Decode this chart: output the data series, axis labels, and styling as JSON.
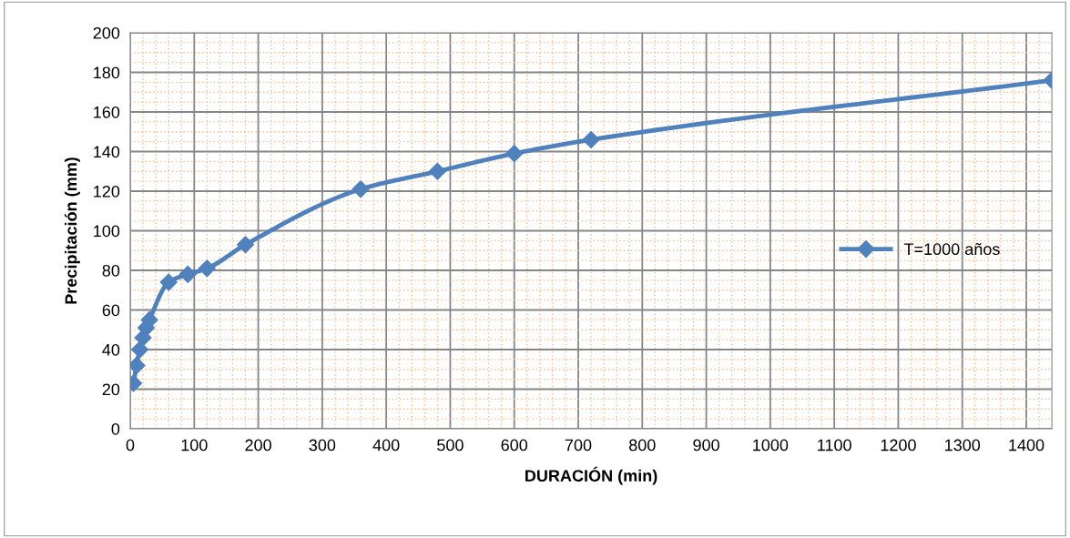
{
  "chart_data": {
    "type": "line",
    "xlabel": "DURACIÓN (min)",
    "ylabel": "Precipitación (mm)",
    "xlim": [
      0,
      1440
    ],
    "xticks": [
      0,
      {
        "value": 20,
        "label": null
      },
      {
        "value": 40,
        "label": null
      },
      {
        "value": 60,
        "label": null
      },
      {
        "value": 80,
        "label": null
      },
      100,
      {
        "value": 120,
        "label": null
      },
      {
        "value": 140,
        "label": null
      },
      {
        "value": 160,
        "label": null
      },
      {
        "value": 180,
        "label": null
      },
      200,
      {
        "value": 220,
        "label": null
      },
      {
        "value": 240,
        "label": null
      },
      {
        "value": 260,
        "label": null
      },
      {
        "value": 280,
        "label": null
      },
      300,
      {
        "value": 320,
        "label": null
      },
      {
        "value": 340,
        "label": null
      },
      {
        "value": 360,
        "label": null
      },
      {
        "value": 380,
        "label": null
      },
      400,
      {
        "value": 420,
        "label": null
      },
      {
        "value": 440,
        "label": null
      },
      {
        "value": 460,
        "label": null
      },
      {
        "value": 480,
        "label": null
      },
      500,
      {
        "value": 520,
        "label": null
      },
      {
        "value": 540,
        "label": null
      },
      {
        "value": 560,
        "label": null
      },
      {
        "value": 580,
        "label": null
      },
      600,
      {
        "value": 620,
        "label": null
      },
      {
        "value": 640,
        "label": null
      },
      {
        "value": 660,
        "label": null
      },
      {
        "value": 680,
        "label": null
      },
      700,
      {
        "value": 720,
        "label": null
      },
      {
        "value": 740,
        "label": null
      },
      {
        "value": 760,
        "label": null
      },
      {
        "value": 780,
        "label": null
      },
      800,
      {
        "value": 820,
        "label": null
      },
      {
        "value": 840,
        "label": null
      },
      {
        "value": 860,
        "label": null
      },
      {
        "value": 880,
        "label": null
      },
      900,
      {
        "value": 920,
        "label": null
      },
      {
        "value": 940,
        "label": null
      },
      {
        "value": 960,
        "label": null
      },
      {
        "value": 980,
        "label": null
      },
      1000,
      {
        "value": 1020,
        "label": null
      },
      {
        "value": 1040,
        "label": null
      },
      {
        "value": 1060,
        "label": null
      },
      {
        "value": 1080,
        "label": null
      },
      1100,
      {
        "value": 1120,
        "label": null
      },
      {
        "value": 1140,
        "label": null
      },
      {
        "value": 1160,
        "label": null
      },
      {
        "value": 1180,
        "label": null
      },
      1200,
      {
        "value": 1220,
        "label": null
      },
      {
        "value": 1240,
        "label": null
      },
      {
        "value": 1260,
        "label": null
      },
      {
        "value": 1280,
        "label": null
      },
      1300,
      {
        "value": 1320,
        "label": null
      },
      {
        "value": 1340,
        "label": null
      },
      {
        "value": 1360,
        "label": null
      },
      {
        "value": 1380,
        "label": null
      },
      1400,
      {
        "value": 1420,
        "label": null
      }
    ],
    "ylim": [
      0,
      200
    ],
    "yticks": [
      0,
      {
        "value": 5,
        "label": null
      },
      {
        "value": 10,
        "label": null
      },
      {
        "value": 15,
        "label": null
      },
      20,
      {
        "value": 25,
        "label": null
      },
      {
        "value": 30,
        "label": null
      },
      {
        "value": 35,
        "label": null
      },
      40,
      {
        "value": 45,
        "label": null
      },
      {
        "value": 50,
        "label": null
      },
      {
        "value": 55,
        "label": null
      },
      60,
      {
        "value": 65,
        "label": null
      },
      {
        "value": 70,
        "label": null
      },
      {
        "value": 75,
        "label": null
      },
      80,
      {
        "value": 85,
        "label": null
      },
      {
        "value": 90,
        "label": null
      },
      {
        "value": 95,
        "label": null
      },
      100,
      {
        "value": 105,
        "label": null
      },
      {
        "value": 110,
        "label": null
      },
      {
        "value": 115,
        "label": null
      },
      120,
      {
        "value": 125,
        "label": null
      },
      {
        "value": 130,
        "label": null
      },
      {
        "value": 135,
        "label": null
      },
      140,
      {
        "value": 145,
        "label": null
      },
      {
        "value": 150,
        "label": null
      },
      {
        "value": 155,
        "label": null
      },
      160,
      {
        "value": 165,
        "label": null
      },
      {
        "value": 170,
        "label": null
      },
      {
        "value": 175,
        "label": null
      },
      180,
      {
        "value": 185,
        "label": null
      },
      {
        "value": 190,
        "label": null
      },
      {
        "value": 195,
        "label": null
      },
      200
    ],
    "grid": true,
    "legend": "right",
    "marker": "diamond",
    "line_style": "solid",
    "series": [
      {
        "name": "T=1000 años",
        "color": "#4f81bd",
        "x": [
          5,
          10,
          15,
          20,
          25,
          30,
          60,
          90,
          120,
          180,
          360,
          480,
          600,
          720,
          1440
        ],
        "values": [
          23,
          32,
          40,
          46,
          51,
          55,
          74,
          78,
          81,
          93,
          121,
          130,
          139,
          146,
          176
        ]
      }
    ]
  }
}
